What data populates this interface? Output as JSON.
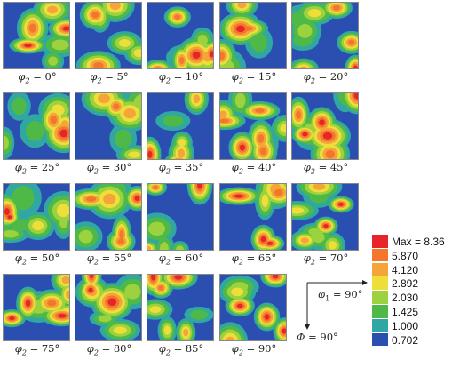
{
  "panels": [
    {
      "phi2_label": "φ",
      "sub": "2",
      "value": "= 0°"
    },
    {
      "phi2_label": "φ",
      "sub": "2",
      "value": "= 5°"
    },
    {
      "phi2_label": "φ",
      "sub": "2",
      "value": "= 10°"
    },
    {
      "phi2_label": "φ",
      "sub": "2",
      "value": "= 15°"
    },
    {
      "phi2_label": "φ",
      "sub": "2",
      "value": "= 20°"
    },
    {
      "phi2_label": "φ",
      "sub": "2",
      "value": "= 25°"
    },
    {
      "phi2_label": "φ",
      "sub": "2",
      "value": "= 30°"
    },
    {
      "phi2_label": "φ",
      "sub": "2",
      "value": "= 35°"
    },
    {
      "phi2_label": "φ",
      "sub": "2",
      "value": "= 40°"
    },
    {
      "phi2_label": "φ",
      "sub": "2",
      "value": "= 45°"
    },
    {
      "phi2_label": "φ",
      "sub": "2",
      "value": "= 50°"
    },
    {
      "phi2_label": "φ",
      "sub": "2",
      "value": "= 55°"
    },
    {
      "phi2_label": "φ",
      "sub": "2",
      "value": "= 60°"
    },
    {
      "phi2_label": "φ",
      "sub": "2",
      "value": "= 65°"
    },
    {
      "phi2_label": "φ",
      "sub": "2",
      "value": "= 70°"
    },
    {
      "phi2_label": "φ",
      "sub": "2",
      "value": "= 75°"
    },
    {
      "phi2_label": "φ",
      "sub": "2",
      "value": "= 80°"
    },
    {
      "phi2_label": "φ",
      "sub": "2",
      "value": "= 85°"
    },
    {
      "phi2_label": "φ",
      "sub": "2",
      "value": "= 90°"
    }
  ],
  "legend": {
    "levels": [
      {
        "label": "Max = 8.36",
        "color": "#e8232a"
      },
      {
        "label": "5.870",
        "color": "#f2772a"
      },
      {
        "label": "4.120",
        "color": "#f4a43a"
      },
      {
        "label": "2.892",
        "color": "#eede3a"
      },
      {
        "label": "2.030",
        "color": "#9bd23e"
      },
      {
        "label": "1.425",
        "color": "#4fb948"
      },
      {
        "label": "1.000",
        "color": "#30a7a3"
      },
      {
        "label": "0.702",
        "color": "#2b4fb0"
      }
    ]
  },
  "axes": {
    "phi1_sym": "φ",
    "phi1_sub": "1",
    "phi1_value": "= 90°",
    "Phi_sym": "Φ",
    "Phi_value": "= 90°"
  }
}
